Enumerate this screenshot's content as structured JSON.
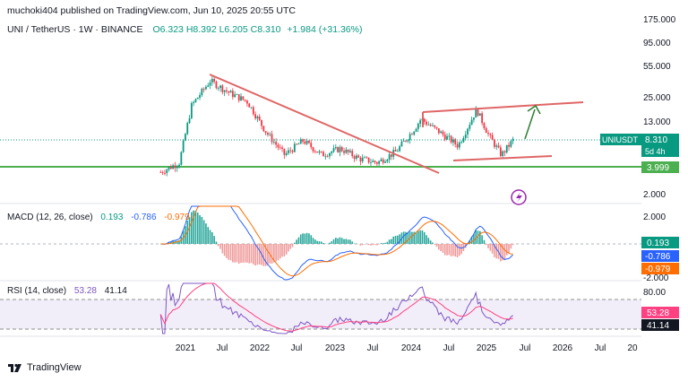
{
  "header": {
    "published": "muchoki404 published on TradingView.com, Jun 10, 2025 20:55 UTC"
  },
  "symbol": {
    "name": "UNI / TetherUS · 1W · BINANCE",
    "open": "O6.323",
    "high": "H8.392",
    "low": "L6.205",
    "close": "C8.310",
    "change": "+1.984 (+31.36%)"
  },
  "price_axis": {
    "ticks": [
      "175.000",
      "95.000",
      "55.000",
      "25.000",
      "13.000",
      "2.000"
    ],
    "badge_symbol": "UNIUSDT",
    "badge_price": "8.310",
    "badge_countdown": "5d 4h",
    "support_label": "3.999"
  },
  "macd": {
    "label": "MACD (12, 26, close)",
    "v1": "0.193",
    "v2": "-0.786",
    "v3": "-0.979",
    "ticks": [
      "2.000"
    ],
    "bottom_tick": "-2.000"
  },
  "rsi": {
    "label": "RSI (14, close)",
    "v1": "53.28",
    "v2": "41.14",
    "ticks": [
      "80.00"
    ]
  },
  "footer": {
    "brand": "TradingView"
  },
  "colors": {
    "up": "#089981",
    "down": "#f23645",
    "support": "#4caf50",
    "trend": "#e06666",
    "arrow": "#2e7d32",
    "macd": "#2962ff",
    "signal": "#ff6d00",
    "rsi": "#7e57c2",
    "rsi_ma": "#ff4081"
  },
  "chart_data": [
    {
      "type": "candlestick",
      "title": "UNI / TetherUS · 1W · BINANCE",
      "scale": "log",
      "x_ticks": [
        "2021",
        "Jul",
        "2022",
        "Jul",
        "2023",
        "Jul",
        "2024",
        "Jul",
        "2025",
        "Jul",
        "2026",
        "Jul",
        "20"
      ],
      "y_ticks": [
        175,
        95,
        55,
        25,
        13,
        2
      ],
      "last_price": 8.31,
      "support_level": 3.999,
      "series": [
        {
          "name": "UNIUSDT weekly close (approx)",
          "x": [
            "2020-09",
            "2020-12",
            "2021-02",
            "2021-05",
            "2021-08",
            "2021-11",
            "2022-02",
            "2022-05",
            "2022-08",
            "2022-11",
            "2023-02",
            "2023-05",
            "2023-08",
            "2023-11",
            "2024-02",
            "2024-03",
            "2024-06",
            "2024-09",
            "2024-12",
            "2025-02",
            "2025-04",
            "2025-06"
          ],
          "values": [
            3.5,
            4.5,
            20,
            38,
            28,
            22,
            10,
            5.5,
            8,
            5.5,
            6.5,
            5,
            4.5,
            6,
            11,
            14,
            10,
            7,
            18,
            9,
            5.5,
            8.31
          ]
        }
      ],
      "annotations": [
        {
          "type": "descending_trendline",
          "from": {
            "x": "2021-05",
            "y": 44
          },
          "to": {
            "x": "2023-12",
            "y": 3.4
          }
        },
        {
          "type": "channel_top",
          "from": {
            "x": "2024-03",
            "y": 15
          },
          "to": {
            "x": "2026-03",
            "y": 27
          }
        },
        {
          "type": "channel_bottom",
          "from": {
            "x": "2024-08",
            "y": 4.6
          },
          "to": {
            "x": "2025-08",
            "y": 5.3
          }
        },
        {
          "type": "projection_arrow",
          "from": {
            "x": "2025-06",
            "y": 8.31
          },
          "to": {
            "x": "2025-07",
            "y": 26
          }
        }
      ]
    },
    {
      "type": "line",
      "title": "MACD (12, 26, close)",
      "values_shown": {
        "histogram": 0.193,
        "macd": -0.786,
        "signal": -0.979
      },
      "y_ticks": [
        2,
        -2
      ]
    },
    {
      "type": "line",
      "title": "RSI (14, close)",
      "values_shown": {
        "rsi": 53.28,
        "rsi_ma": 41.14
      },
      "y_ticks": [
        80
      ],
      "levels": [
        70,
        30
      ]
    }
  ]
}
